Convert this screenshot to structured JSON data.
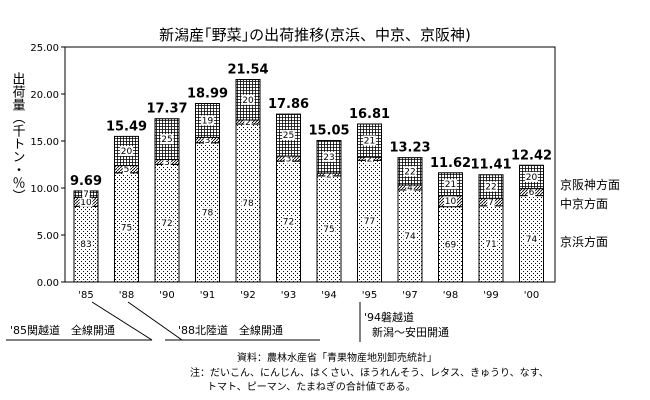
{
  "chart_data": {
    "type": "bar",
    "stacked": true,
    "title": "新潟産｢野菜｣の出荷推移(京浜、中京、京阪神)",
    "ylabel": "出荷量（千トン・％）",
    "ylim": [
      0,
      25
    ],
    "yticks": [
      "0.00",
      "5.00",
      "10.00",
      "15.00",
      "20.00",
      "25.00"
    ],
    "grid": false,
    "categories": [
      "'85",
      "'88",
      "'90",
      "'91",
      "'92",
      "'93",
      "'94",
      "'95",
      "'97",
      "'98",
      "'99",
      "'00"
    ],
    "totals": [
      9.69,
      15.49,
      17.37,
      18.99,
      21.54,
      17.86,
      15.05,
      16.81,
      13.23,
      11.62,
      11.41,
      12.42
    ],
    "series": [
      {
        "name": "京浜方面",
        "percent": [
          83,
          75,
          72,
          78,
          78,
          72,
          75,
          77,
          74,
          69,
          71,
          74
        ]
      },
      {
        "name": "中京方面",
        "percent": [
          10,
          5,
          3,
          3,
          2,
          3,
          2,
          2,
          4,
          10,
          7,
          6
        ]
      },
      {
        "name": "京阪神方面",
        "percent": [
          7,
          20,
          25,
          19,
          20,
          25,
          23,
          21,
          22,
          21,
          22,
          20
        ]
      }
    ],
    "legend_position": "right"
  },
  "notes": {
    "n1": "'85関越道　全線開通",
    "n2": "'88北陸道　全線開通",
    "n3_line1": "'94磐越道",
    "n3_line2": "新潟～安田開通"
  },
  "source": {
    "line1": "資料：農林水産省「青果物産地別卸売統計」",
    "line2": "注：だいこん、にんじん、はくさい、ほうれんそう、レタス、きゅうり、なす、",
    "line3": "トマト、ピーマン、たまねぎの合計値である。"
  }
}
